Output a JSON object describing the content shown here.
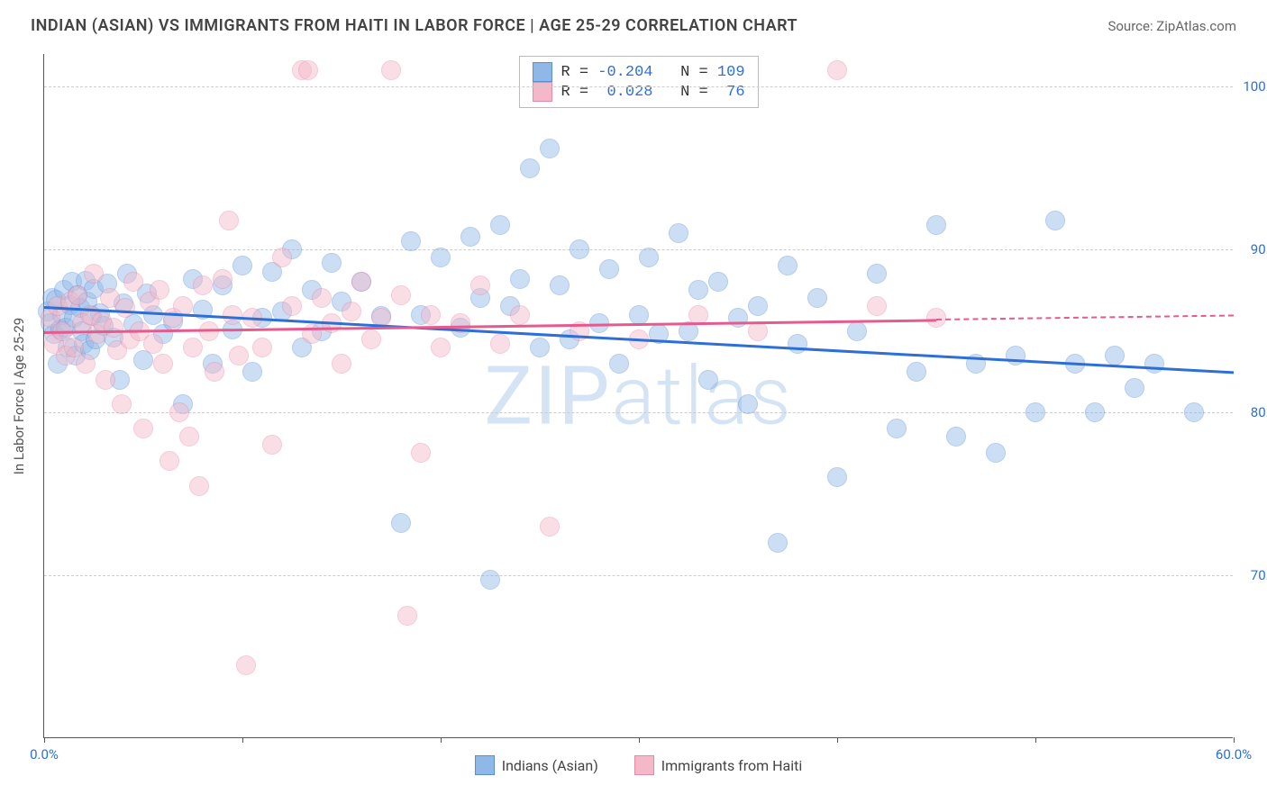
{
  "title": "INDIAN (ASIAN) VS IMMIGRANTS FROM HAITI IN LABOR FORCE | AGE 25-29 CORRELATION CHART",
  "source": "Source: ZipAtlas.com",
  "ylabel": "In Labor Force | Age 25-29",
  "watermark": {
    "bold": "ZIP",
    "light": "atlas",
    "color": "#d5e4f4"
  },
  "chart": {
    "type": "scatter",
    "background_color": "#ffffff",
    "grid_color": "#cccccc",
    "axis_color": "#555555",
    "xlim": [
      0,
      60
    ],
    "ylim": [
      60,
      102
    ],
    "x_ticks": [
      0,
      10,
      20,
      30,
      40,
      50,
      60
    ],
    "x_tick_labels": {
      "0": "0.0%",
      "60": "60.0%"
    },
    "x_tick_label_color": "#2d6fd6",
    "y_ticks": [
      70,
      80,
      90,
      100
    ],
    "y_tick_labels": {
      "70": "70.0%",
      "80": "80.0%",
      "90": "90.0%",
      "100": "100.0%"
    },
    "y_tick_label_color": "#2d6fd6",
    "marker_radius": 11,
    "marker_opacity": 0.45,
    "series": [
      {
        "name": "Indians (Asian)",
        "color": "#8fb8e8",
        "border_color": "#5a8fd6",
        "R": "-0.204",
        "N": "109",
        "trend": {
          "x0": 0,
          "y0": 86.5,
          "x1": 60,
          "y1": 82.5,
          "solid_end_x": 60,
          "line_color": "#2d6fd6"
        },
        "points": [
          [
            0.2,
            86.2
          ],
          [
            0.3,
            85.5
          ],
          [
            0.4,
            87.0
          ],
          [
            0.5,
            84.8
          ],
          [
            0.6,
            86.9
          ],
          [
            0.7,
            83.0
          ],
          [
            0.8,
            85.1
          ],
          [
            0.9,
            86.0
          ],
          [
            1.0,
            87.5
          ],
          [
            1.1,
            85.2
          ],
          [
            1.2,
            84.0
          ],
          [
            1.3,
            86.6
          ],
          [
            1.4,
            88.0
          ],
          [
            1.5,
            85.8
          ],
          [
            1.6,
            83.5
          ],
          [
            1.7,
            87.2
          ],
          [
            1.8,
            86.4
          ],
          [
            1.9,
            85.0
          ],
          [
            2.0,
            84.2
          ],
          [
            2.1,
            88.1
          ],
          [
            2.2,
            86.8
          ],
          [
            2.3,
            83.8
          ],
          [
            2.4,
            85.9
          ],
          [
            2.5,
            87.6
          ],
          [
            2.6,
            84.5
          ],
          [
            2.8,
            86.1
          ],
          [
            3.0,
            85.3
          ],
          [
            3.2,
            87.9
          ],
          [
            3.5,
            84.6
          ],
          [
            3.8,
            82.0
          ],
          [
            4.0,
            86.7
          ],
          [
            4.2,
            88.5
          ],
          [
            4.5,
            85.4
          ],
          [
            5.0,
            83.2
          ],
          [
            5.2,
            87.3
          ],
          [
            5.5,
            86.0
          ],
          [
            6.0,
            84.8
          ],
          [
            6.5,
            85.6
          ],
          [
            7.0,
            80.5
          ],
          [
            7.5,
            88.2
          ],
          [
            8.0,
            86.3
          ],
          [
            8.5,
            83.0
          ],
          [
            9.0,
            87.8
          ],
          [
            9.5,
            85.1
          ],
          [
            10.0,
            89.0
          ],
          [
            10.5,
            82.5
          ],
          [
            11.0,
            85.8
          ],
          [
            11.5,
            88.6
          ],
          [
            12.0,
            86.2
          ],
          [
            12.5,
            90.0
          ],
          [
            13.0,
            84.0
          ],
          [
            13.5,
            87.5
          ],
          [
            14.0,
            85.0
          ],
          [
            14.5,
            89.2
          ],
          [
            15.0,
            86.8
          ],
          [
            16.0,
            88.0
          ],
          [
            17.0,
            85.9
          ],
          [
            18.0,
            73.2
          ],
          [
            18.5,
            90.5
          ],
          [
            19.0,
            86.0
          ],
          [
            20.0,
            89.5
          ],
          [
            21.0,
            85.2
          ],
          [
            21.5,
            90.8
          ],
          [
            22.0,
            87.0
          ],
          [
            22.5,
            69.7
          ],
          [
            23.0,
            91.5
          ],
          [
            23.5,
            86.5
          ],
          [
            24.0,
            88.2
          ],
          [
            24.5,
            95.0
          ],
          [
            25.0,
            84.0
          ],
          [
            25.5,
            96.2
          ],
          [
            26.0,
            87.8
          ],
          [
            26.5,
            84.5
          ],
          [
            27.0,
            90.0
          ],
          [
            28.0,
            85.5
          ],
          [
            28.5,
            88.8
          ],
          [
            29.0,
            83.0
          ],
          [
            30.0,
            86.0
          ],
          [
            30.5,
            89.5
          ],
          [
            31.0,
            84.8
          ],
          [
            32.0,
            91.0
          ],
          [
            32.5,
            85.0
          ],
          [
            33.0,
            87.5
          ],
          [
            33.5,
            82.0
          ],
          [
            34.0,
            88.0
          ],
          [
            35.0,
            85.8
          ],
          [
            35.5,
            80.5
          ],
          [
            36.0,
            86.5
          ],
          [
            37.0,
            72.0
          ],
          [
            37.5,
            89.0
          ],
          [
            38.0,
            84.2
          ],
          [
            39.0,
            87.0
          ],
          [
            40.0,
            76.0
          ],
          [
            41.0,
            85.0
          ],
          [
            42.0,
            88.5
          ],
          [
            43.0,
            79.0
          ],
          [
            44.0,
            82.5
          ],
          [
            45.0,
            91.5
          ],
          [
            46.0,
            78.5
          ],
          [
            47.0,
            83.0
          ],
          [
            48.0,
            77.5
          ],
          [
            49.0,
            83.5
          ],
          [
            50.0,
            80.0
          ],
          [
            51.0,
            91.8
          ],
          [
            52.0,
            83.0
          ],
          [
            53.0,
            80.0
          ],
          [
            54.0,
            83.5
          ],
          [
            55.0,
            81.5
          ],
          [
            56.0,
            83.0
          ],
          [
            58.0,
            80.0
          ]
        ]
      },
      {
        "name": "Immigrants from Haiti",
        "color": "#f4b8c8",
        "border_color": "#e888a8",
        "R": " 0.028",
        "N": " 76",
        "trend": {
          "x0": 0,
          "y0": 85.0,
          "x1": 60,
          "y1": 86.0,
          "solid_end_x": 45,
          "line_color": "#e65a8f"
        },
        "points": [
          [
            0.3,
            85.8
          ],
          [
            0.5,
            84.2
          ],
          [
            0.7,
            86.5
          ],
          [
            0.9,
            85.0
          ],
          [
            1.1,
            83.5
          ],
          [
            1.3,
            86.8
          ],
          [
            1.5,
            84.0
          ],
          [
            1.7,
            87.2
          ],
          [
            1.9,
            85.5
          ],
          [
            2.1,
            83.0
          ],
          [
            2.3,
            86.0
          ],
          [
            2.5,
            88.5
          ],
          [
            2.7,
            84.8
          ],
          [
            2.9,
            85.6
          ],
          [
            3.1,
            82.0
          ],
          [
            3.3,
            87.0
          ],
          [
            3.5,
            85.2
          ],
          [
            3.7,
            83.8
          ],
          [
            3.9,
            80.5
          ],
          [
            4.1,
            86.4
          ],
          [
            4.3,
            84.5
          ],
          [
            4.5,
            88.0
          ],
          [
            4.8,
            85.0
          ],
          [
            5.0,
            79.0
          ],
          [
            5.3,
            86.8
          ],
          [
            5.5,
            84.2
          ],
          [
            5.8,
            87.5
          ],
          [
            6.0,
            83.0
          ],
          [
            6.3,
            77.0
          ],
          [
            6.5,
            85.8
          ],
          [
            6.8,
            80.0
          ],
          [
            7.0,
            86.5
          ],
          [
            7.3,
            78.5
          ],
          [
            7.5,
            84.0
          ],
          [
            7.8,
            75.5
          ],
          [
            8.0,
            87.8
          ],
          [
            8.3,
            85.0
          ],
          [
            8.6,
            82.5
          ],
          [
            9.0,
            88.2
          ],
          [
            9.3,
            91.8
          ],
          [
            9.5,
            86.0
          ],
          [
            9.8,
            83.5
          ],
          [
            10.2,
            64.5
          ],
          [
            10.5,
            85.8
          ],
          [
            11.0,
            84.0
          ],
          [
            11.5,
            78.0
          ],
          [
            12.0,
            89.5
          ],
          [
            12.5,
            86.5
          ],
          [
            13.0,
            101.0
          ],
          [
            13.3,
            101.0
          ],
          [
            13.5,
            84.8
          ],
          [
            14.0,
            87.0
          ],
          [
            14.5,
            85.5
          ],
          [
            15.0,
            83.0
          ],
          [
            15.5,
            86.2
          ],
          [
            16.0,
            88.0
          ],
          [
            16.5,
            84.5
          ],
          [
            17.0,
            85.8
          ],
          [
            17.5,
            101.0
          ],
          [
            18.0,
            87.2
          ],
          [
            18.3,
            67.5
          ],
          [
            19.0,
            77.5
          ],
          [
            19.5,
            86.0
          ],
          [
            20.0,
            84.0
          ],
          [
            21.0,
            85.5
          ],
          [
            22.0,
            87.8
          ],
          [
            23.0,
            84.2
          ],
          [
            24.0,
            86.0
          ],
          [
            25.5,
            73.0
          ],
          [
            27.0,
            85.0
          ],
          [
            30.0,
            84.5
          ],
          [
            33.0,
            86.0
          ],
          [
            36.0,
            85.0
          ],
          [
            40.0,
            101.0
          ],
          [
            42.0,
            86.5
          ],
          [
            45.0,
            85.8
          ]
        ]
      }
    ],
    "stats_value_color": "#2d6fd6",
    "stats_label_color": "#333333"
  }
}
